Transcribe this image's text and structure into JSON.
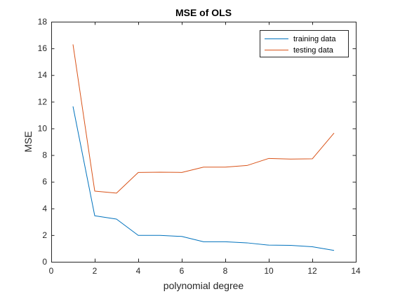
{
  "chart_data": {
    "type": "line",
    "title": "MSE of OLS",
    "xlabel": "polynomial degree",
    "ylabel": "MSE",
    "xlim": [
      0,
      14
    ],
    "ylim": [
      0,
      18
    ],
    "xticks": [
      "0",
      "2",
      "4",
      "6",
      "8",
      "10",
      "12",
      "14"
    ],
    "yticks": [
      "0",
      "2",
      "4",
      "6",
      "8",
      "10",
      "12",
      "14",
      "16",
      "18"
    ],
    "grid": false,
    "legend_position": "top-right",
    "x": [
      1,
      2,
      3,
      4,
      5,
      6,
      7,
      8,
      9,
      10,
      11,
      12,
      13
    ],
    "series": [
      {
        "name": "training data",
        "color": "#0072BD",
        "values": [
          11.65,
          3.45,
          3.2,
          1.98,
          1.98,
          1.9,
          1.5,
          1.5,
          1.42,
          1.25,
          1.23,
          1.13,
          0.85
        ]
      },
      {
        "name": "testing data",
        "color": "#D95319",
        "values": [
          16.3,
          5.3,
          5.15,
          6.7,
          6.72,
          6.7,
          7.1,
          7.1,
          7.22,
          7.75,
          7.7,
          7.72,
          9.65
        ]
      }
    ]
  }
}
